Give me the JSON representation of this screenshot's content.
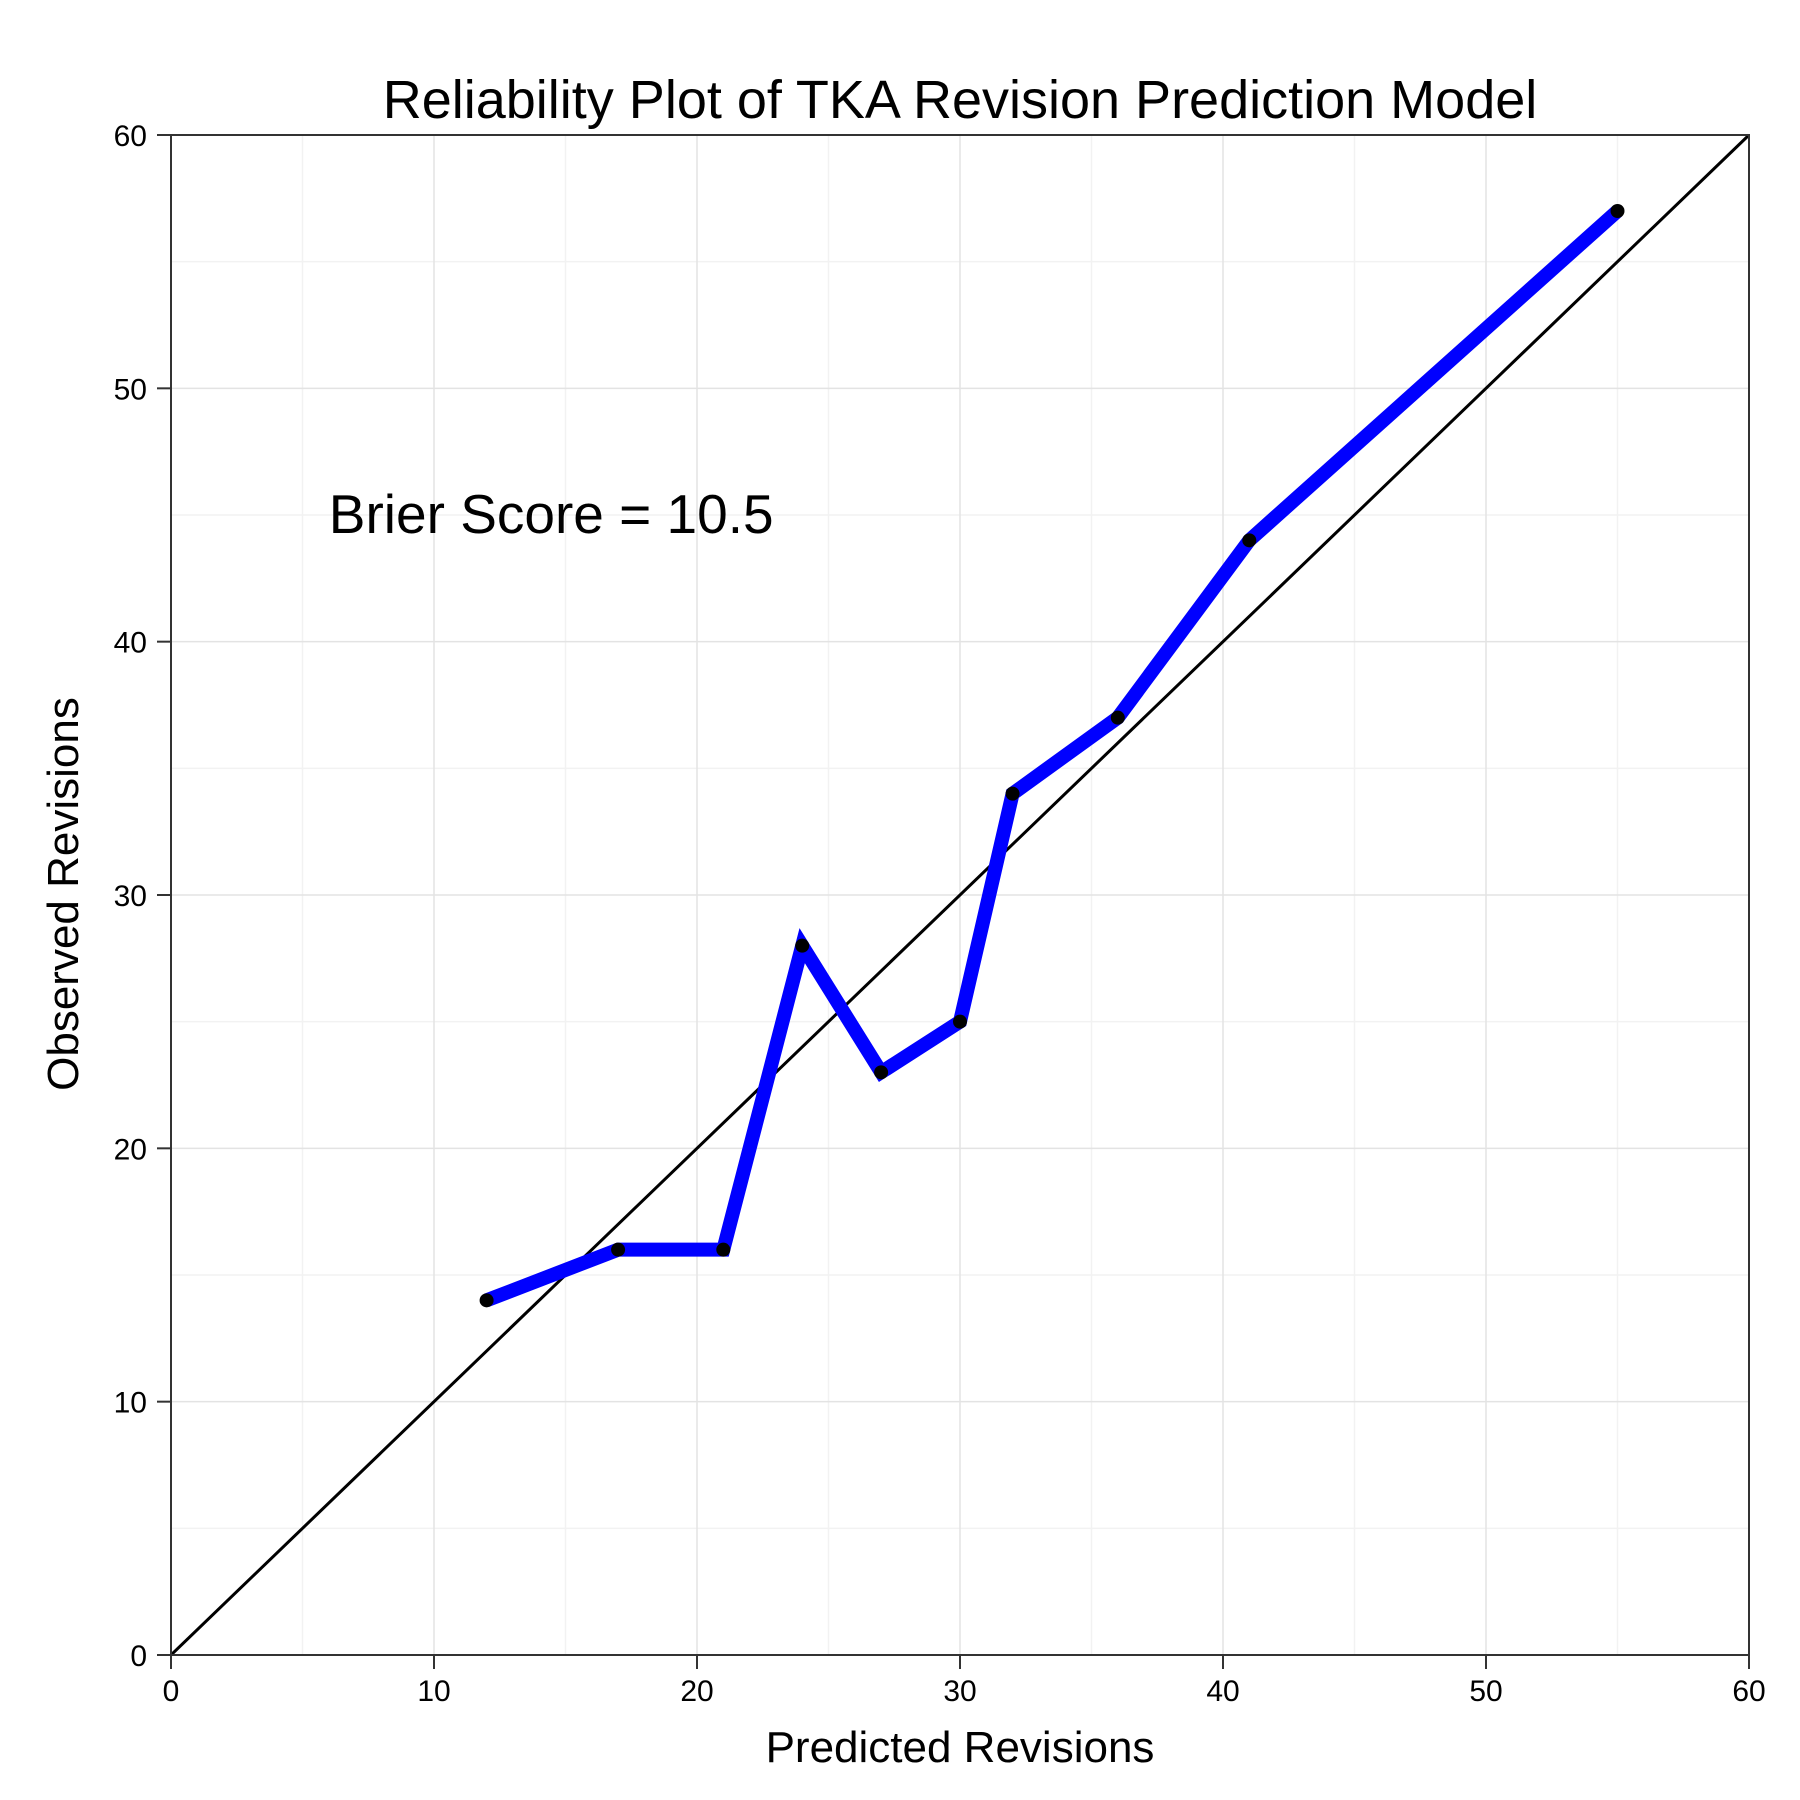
{
  "chart_data": {
    "type": "line",
    "title": "Reliability Plot of TKA Revision Prediction Model",
    "xlabel": "Predicted Revisions",
    "ylabel": "Observed Revisions",
    "xlim": [
      0,
      60
    ],
    "ylim": [
      0,
      60
    ],
    "xticks": [
      "0",
      "10",
      "20",
      "30",
      "40",
      "50",
      "60"
    ],
    "yticks": [
      "0",
      "10",
      "20",
      "30",
      "40",
      "50",
      "60"
    ],
    "grid": true,
    "series": [
      {
        "color": "#0000ff",
        "marker_color": "#000000",
        "x": [
          12,
          17,
          21,
          24,
          27,
          30,
          32,
          36,
          41,
          55
        ],
        "y": [
          14,
          16,
          16,
          28,
          23,
          25,
          34,
          37,
          44,
          57
        ]
      }
    ],
    "reference_line": {
      "color": "#000000",
      "x": [
        0,
        60
      ],
      "y": [
        0,
        60
      ]
    },
    "annotation": {
      "text": "Brier Score = 10.5",
      "x": 6,
      "y": 45
    }
  }
}
